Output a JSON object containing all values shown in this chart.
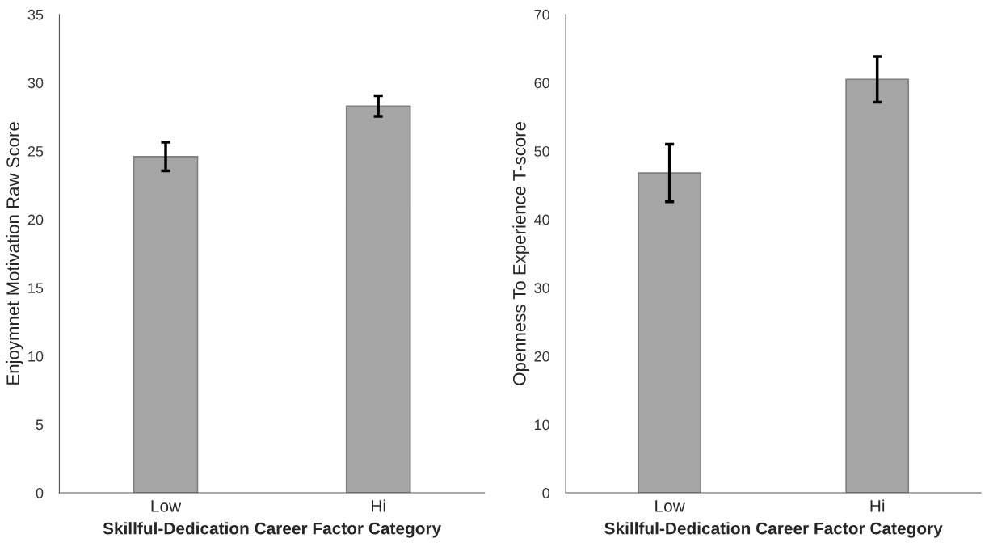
{
  "chart_data": [
    {
      "type": "bar",
      "categories": [
        "Low",
        "Hi"
      ],
      "values": [
        24.6,
        28.3
      ],
      "errors": [
        1.05,
        0.75
      ],
      "color": "#a5a5a5",
      "xlabel": "Skillful-Dedication Career Factor Category",
      "ylabel": "Enjoymnet Motivation Raw Score",
      "ylim": [
        0,
        35
      ],
      "yticks": [
        0,
        5,
        10,
        15,
        20,
        25,
        30,
        35
      ],
      "grid": false,
      "legend": false
    },
    {
      "type": "bar",
      "categories": [
        "Low",
        "Hi"
      ],
      "values": [
        46.8,
        60.5
      ],
      "errors": [
        4.2,
        3.35
      ],
      "color": "#a5a5a5",
      "xlabel": "Skillful-Dedication Career Factor Category",
      "ylabel": "Openness To Experience T-score",
      "ylim": [
        0,
        70
      ],
      "yticks": [
        0,
        10,
        20,
        30,
        40,
        50,
        60,
        70
      ],
      "grid": false,
      "legend": false
    }
  ]
}
